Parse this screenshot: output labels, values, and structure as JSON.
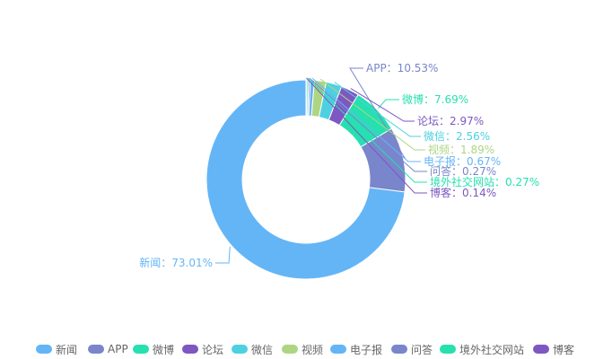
{
  "chart_data": {
    "type": "pie",
    "subtype": "donut",
    "title": "",
    "categories": [
      "新闻",
      "APP",
      "微博",
      "论坛",
      "微信",
      "视频",
      "电子报",
      "问答",
      "境外社交网站",
      "博客"
    ],
    "values": [
      73.01,
      10.53,
      7.69,
      2.97,
      2.56,
      1.89,
      0.67,
      0.27,
      0.27,
      0.14
    ],
    "unit": "%",
    "colors": [
      "#64b5f6",
      "#7986cb",
      "#26e0b0",
      "#7e57c2",
      "#4dd0e1",
      "#aed581",
      "#64b5f6",
      "#7986cb",
      "#26e0b0",
      "#7e57c2"
    ],
    "data_labels": [
      "新闻：73.01%",
      "APP：10.53%",
      "微博：7.69%",
      "论坛：2.97%",
      "微信：2.56%",
      "视频：1.89%",
      "电子报：0.67%",
      "问答：0.27%",
      "境外社交网站：0.27%",
      "博客：0.14%"
    ],
    "legend_position": "bottom",
    "start_angle": "top, counterclockwise"
  }
}
